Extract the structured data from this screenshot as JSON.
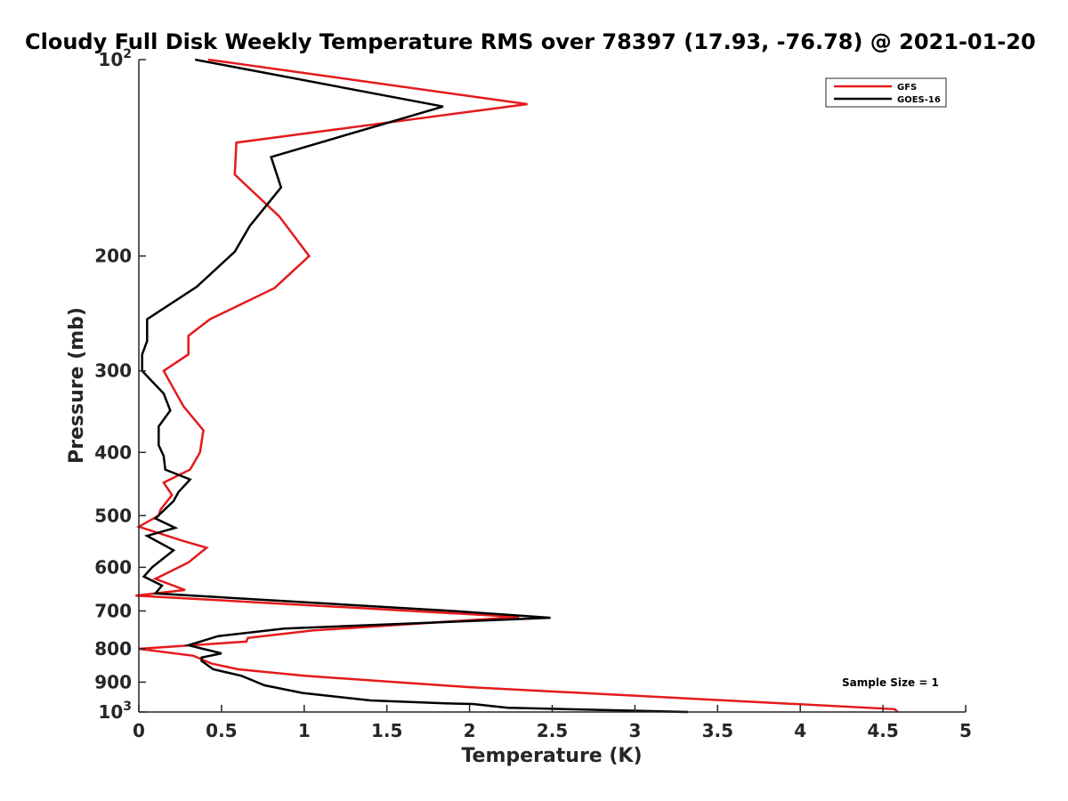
{
  "chart_data": {
    "type": "line",
    "title": "Cloudy Full Disk Weekly Temperature RMS over 78397 (17.93, -76.78) @ 2021-01-20",
    "xlabel": "Temperature (K)",
    "ylabel": "Pressure (mb)",
    "xlim": [
      0,
      5
    ],
    "ylim": [
      100,
      1000
    ],
    "y_scale": "log",
    "y_reversed": true,
    "grid": false,
    "legend_position": "top-right",
    "x_ticks": [
      {
        "value": 0,
        "label": "0"
      },
      {
        "value": 0.5,
        "label": "0.5"
      },
      {
        "value": 1,
        "label": "1"
      },
      {
        "value": 1.5,
        "label": "1.5"
      },
      {
        "value": 2,
        "label": "2"
      },
      {
        "value": 2.5,
        "label": "2.5"
      },
      {
        "value": 3,
        "label": "3"
      },
      {
        "value": 3.5,
        "label": "3.5"
      },
      {
        "value": 4,
        "label": "4"
      },
      {
        "value": 4.5,
        "label": "4.5"
      },
      {
        "value": 5,
        "label": "5"
      }
    ],
    "y_ticks": [
      {
        "value": 100,
        "label": "10",
        "exp": "2"
      },
      {
        "value": 200,
        "label": "200"
      },
      {
        "value": 300,
        "label": "300"
      },
      {
        "value": 400,
        "label": "400"
      },
      {
        "value": 500,
        "label": "500"
      },
      {
        "value": 600,
        "label": "600"
      },
      {
        "value": 700,
        "label": "700"
      },
      {
        "value": 800,
        "label": "800"
      },
      {
        "value": 900,
        "label": "900"
      },
      {
        "value": 1000,
        "label": "10",
        "exp": "3"
      }
    ],
    "annotation": "Sample Size = 1",
    "series": [
      {
        "name": "GFS",
        "color": "#e41a1c",
        "points": [
          [
            0.42,
            100
          ],
          [
            2.35,
            117
          ],
          [
            0.59,
            134
          ],
          [
            0.58,
            150
          ],
          [
            0.85,
            174
          ],
          [
            1.03,
            200
          ],
          [
            0.82,
            224
          ],
          [
            0.43,
            250
          ],
          [
            0.3,
            265
          ],
          [
            0.3,
            283
          ],
          [
            0.15,
            300
          ],
          [
            0.27,
            340
          ],
          [
            0.39,
            370
          ],
          [
            0.37,
            400
          ],
          [
            0.31,
            425
          ],
          [
            0.15,
            445
          ],
          [
            0.2,
            465
          ],
          [
            0.13,
            490
          ],
          [
            0.12,
            500
          ],
          [
            0.0,
            520
          ],
          [
            0.27,
            547
          ],
          [
            0.41,
            560
          ],
          [
            0.3,
            590
          ],
          [
            0.1,
            625
          ],
          [
            0.28,
            650
          ],
          [
            -0.02,
            663
          ],
          [
            2.3,
            715
          ],
          [
            1.05,
            750
          ],
          [
            0.66,
            770
          ],
          [
            0.65,
            780
          ],
          [
            0.0,
            800
          ],
          [
            0.33,
            820
          ],
          [
            0.44,
            843
          ],
          [
            0.6,
            860
          ],
          [
            1.0,
            880
          ],
          [
            2.0,
            916
          ],
          [
            4.57,
            990
          ],
          [
            4.59,
            1000
          ]
        ]
      },
      {
        "name": "GOES-16",
        "color": "#000000",
        "points": [
          [
            0.34,
            100
          ],
          [
            1.84,
            118
          ],
          [
            0.8,
            141
          ],
          [
            0.86,
            157
          ],
          [
            0.67,
            180
          ],
          [
            0.58,
            197
          ],
          [
            0.35,
            223
          ],
          [
            0.05,
            250
          ],
          [
            0.05,
            270
          ],
          [
            0.02,
            283
          ],
          [
            0.02,
            300
          ],
          [
            0.15,
            325
          ],
          [
            0.19,
            345
          ],
          [
            0.12,
            365
          ],
          [
            0.12,
            390
          ],
          [
            0.15,
            405
          ],
          [
            0.16,
            425
          ],
          [
            0.31,
            440
          ],
          [
            0.24,
            460
          ],
          [
            0.21,
            475
          ],
          [
            0.1,
            505
          ],
          [
            0.22,
            522
          ],
          [
            0.05,
            537
          ],
          [
            0.21,
            565
          ],
          [
            0.08,
            600
          ],
          [
            0.03,
            620
          ],
          [
            0.14,
            640
          ],
          [
            0.1,
            658
          ],
          [
            1.9,
            700
          ],
          [
            2.49,
            717
          ],
          [
            0.88,
            745
          ],
          [
            0.48,
            765
          ],
          [
            0.3,
            790
          ],
          [
            0.5,
            813
          ],
          [
            0.38,
            825
          ],
          [
            0.38,
            835
          ],
          [
            0.45,
            860
          ],
          [
            0.62,
            880
          ],
          [
            0.76,
            910
          ],
          [
            0.99,
            935
          ],
          [
            1.4,
            960
          ],
          [
            1.85,
            970
          ],
          [
            2.02,
            972
          ],
          [
            2.23,
            985
          ],
          [
            3.32,
            1000
          ]
        ]
      }
    ]
  }
}
